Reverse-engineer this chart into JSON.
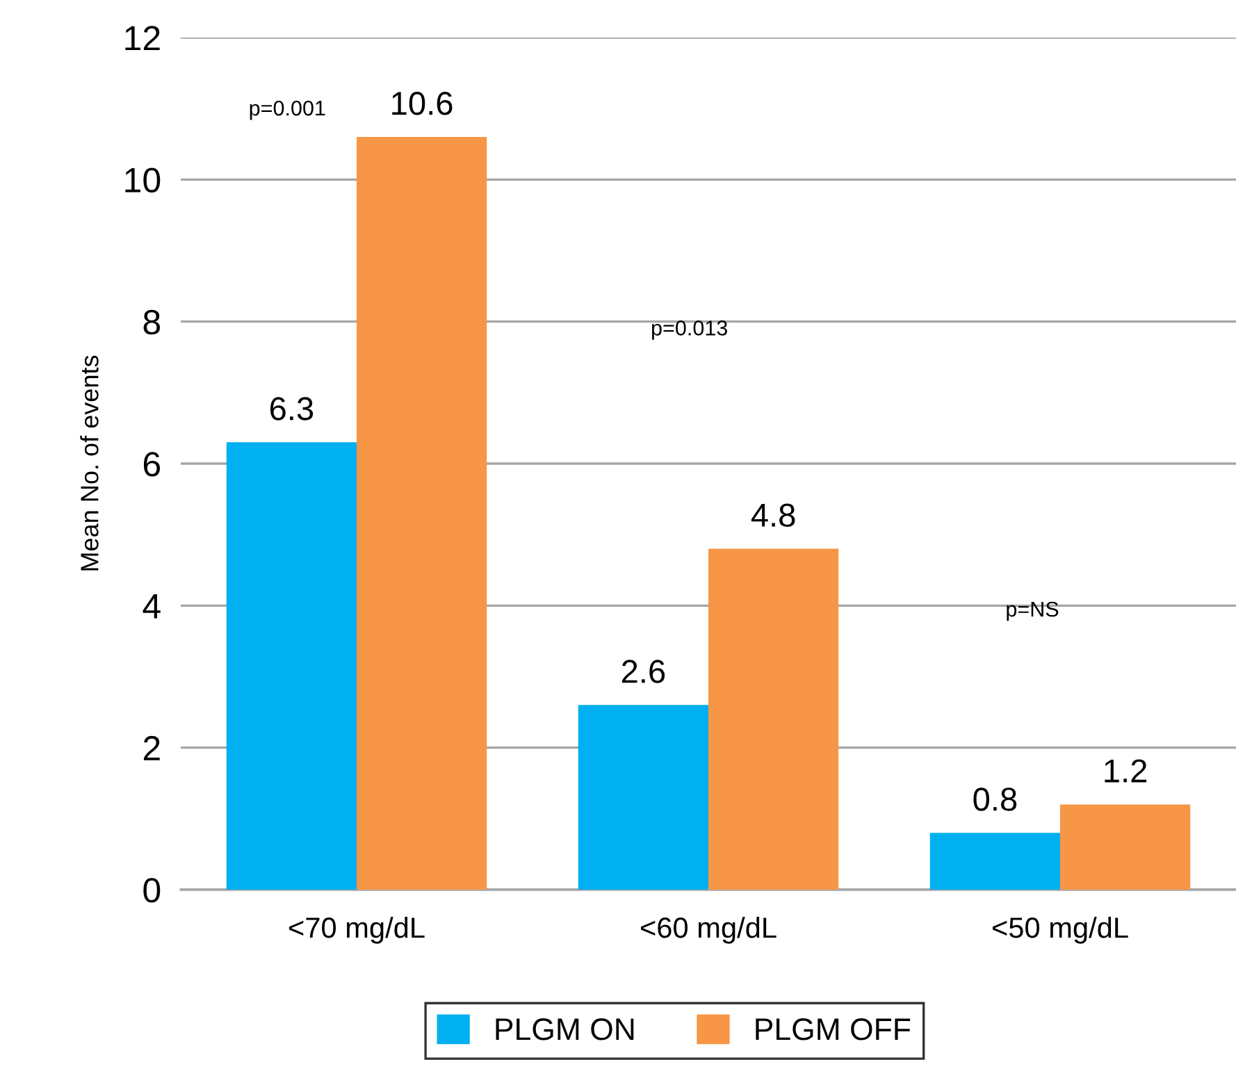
{
  "chart_data": {
    "type": "bar",
    "ylabel": "Mean No. of events",
    "categories": [
      "<70 mg/dL",
      "<60 mg/dL",
      "<50 mg/dL"
    ],
    "series": [
      {
        "name": "PLGM ON",
        "color": "#00b0f0",
        "values": [
          6.3,
          2.6,
          0.8
        ]
      },
      {
        "name": "PLGM OFF",
        "color": "#f79646",
        "values": [
          10.6,
          4.8,
          1.2
        ]
      }
    ],
    "ylim": [
      0,
      12
    ],
    "yticks": [
      0,
      2,
      4,
      6,
      8,
      10,
      12
    ],
    "grid": "y",
    "legend": "bottom",
    "data_labels": true,
    "annotations": [
      "p=0.001",
      "p=0.013",
      "p=NS"
    ]
  }
}
